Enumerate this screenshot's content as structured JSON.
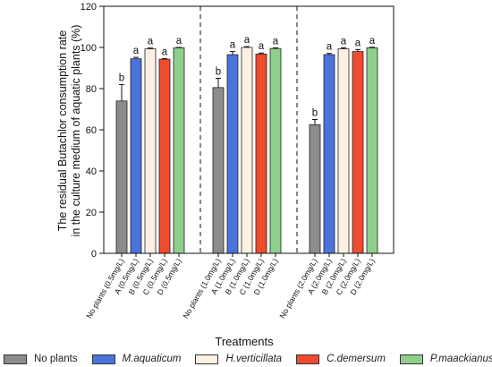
{
  "chart_data": {
    "type": "bar",
    "ylabel_line1": "The residual Butachlor consumption rate",
    "ylabel_line2": "in the culture medium of aquatic plants (%)",
    "xlabel": "Treatments",
    "ylim": [
      0,
      120
    ],
    "yticks": [
      0,
      20,
      40,
      60,
      80,
      100,
      120
    ],
    "groups": [
      {
        "categories": [
          "No plants (0.5mg/L)",
          "A (0.5mg/L)",
          "B (0.5mg/L)",
          "C (0.5mg/L)",
          "D (0.5mg/L)"
        ],
        "values": [
          74,
          94.5,
          99.3,
          94.3,
          99.8
        ],
        "errors": [
          8.0,
          0.7,
          0.4,
          0.3,
          0.2
        ],
        "letters": [
          "b",
          "a",
          "a",
          "a",
          "a"
        ]
      },
      {
        "categories": [
          "No plants (1.0mg/L)",
          "A (1.0mg/L)",
          "B (1.0mg/L)",
          "C (1.0mg/L)",
          "D (1.0mg/L)"
        ],
        "values": [
          80.5,
          96.5,
          100,
          96.8,
          99.5
        ],
        "errors": [
          4.5,
          1.5,
          0.4,
          0.5,
          0.3
        ],
        "letters": [
          "b",
          "a",
          "a",
          "a",
          "a"
        ]
      },
      {
        "categories": [
          "No plants (2.0mg/L)",
          "A (2.0mg/L)",
          "B (2.0mg/L)",
          "C (2.0mg/L)",
          "D (2.0mg/L)"
        ],
        "values": [
          62.5,
          96.5,
          99.3,
          98,
          99.8
        ],
        "errors": [
          2.5,
          0.6,
          0.5,
          1.0,
          0.3
        ],
        "letters": [
          "b",
          "a",
          "a",
          "a",
          "a"
        ]
      }
    ],
    "series_colors": [
      "#8c8c8c",
      "#4a74db",
      "#fcf1e3",
      "#f04b2e",
      "#8fce8c"
    ],
    "legend": [
      {
        "label": "No plants",
        "italic": false
      },
      {
        "label": "M.aquaticum",
        "italic": true
      },
      {
        "label": "H.verticillata",
        "italic": true
      },
      {
        "label": "C.demersum",
        "italic": true
      },
      {
        "label": "P.maackianus",
        "italic": true
      }
    ],
    "legend_position": "bottom",
    "grid": false,
    "group_separators": "dashed"
  }
}
